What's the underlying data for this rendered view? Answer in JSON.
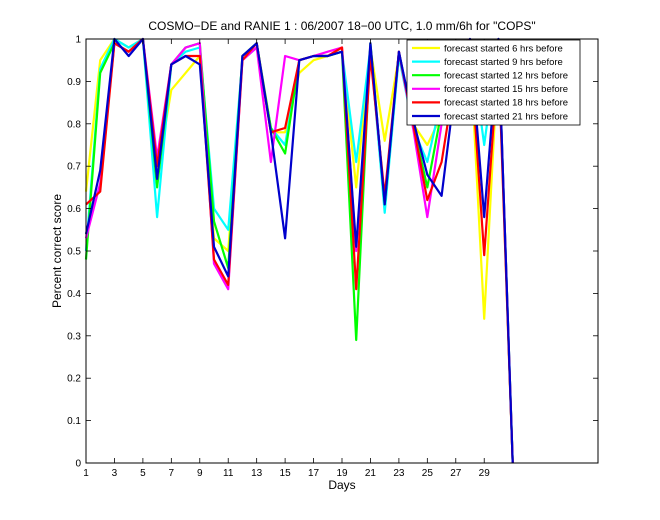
{
  "chart_data": {
    "type": "line",
    "title": "COSMO−DE and RANIE 1 : 06/2007 18−00 UTC, 1.0 mm/6h for \"COPS\"",
    "xlabel": "Days",
    "ylabel": "Percent correct score",
    "xlim": [
      1,
      37
    ],
    "ylim": [
      0,
      1
    ],
    "xticks": [
      1,
      3,
      5,
      7,
      9,
      11,
      13,
      15,
      17,
      19,
      21,
      23,
      25,
      27,
      29
    ],
    "yticks": [
      0,
      0.1,
      0.2,
      0.3,
      0.4,
      0.5,
      0.6,
      0.7,
      0.8,
      0.9,
      1
    ],
    "grid": false,
    "legend_position": "top-right",
    "x": [
      1,
      2,
      3,
      4,
      5,
      6,
      7,
      8,
      9,
      10,
      11,
      12,
      13,
      14,
      15,
      16,
      17,
      18,
      19,
      20,
      21,
      22,
      23,
      24,
      25,
      26,
      27,
      28,
      29,
      30,
      31
    ],
    "series": [
      {
        "name": "forecast started 6 hrs before",
        "color": "#ffff00",
        "values": [
          0.64,
          0.95,
          1.0,
          0.98,
          1.0,
          0.68,
          0.88,
          0.92,
          0.96,
          0.53,
          0.5,
          0.95,
          0.98,
          0.78,
          0.78,
          0.92,
          0.95,
          0.96,
          0.97,
          0.65,
          0.98,
          0.76,
          0.96,
          0.8,
          0.75,
          0.82,
          0.93,
          0.98,
          0.34,
          0.97,
          0.0
        ]
      },
      {
        "name": "forecast started 9 hrs before",
        "color": "#00ffff",
        "values": [
          0.5,
          0.93,
          1.0,
          0.98,
          1.0,
          0.58,
          0.94,
          0.97,
          0.98,
          0.6,
          0.55,
          0.95,
          0.98,
          0.79,
          0.75,
          0.95,
          0.96,
          0.96,
          0.97,
          0.71,
          0.98,
          0.59,
          0.96,
          0.79,
          0.71,
          0.86,
          0.93,
          1.0,
          0.75,
          1.0,
          0.0
        ]
      },
      {
        "name": "forecast started 12 hrs before",
        "color": "#00ff00",
        "values": [
          0.48,
          0.92,
          0.99,
          0.97,
          1.0,
          0.65,
          0.94,
          0.98,
          0.99,
          0.57,
          0.46,
          0.96,
          0.99,
          0.79,
          0.73,
          0.95,
          0.96,
          0.96,
          0.97,
          0.29,
          0.99,
          0.61,
          0.97,
          0.8,
          0.65,
          0.83,
          0.96,
          1.0,
          0.82,
          1.0,
          0.0
        ]
      },
      {
        "name": "forecast started 15 hrs before",
        "color": "#ff00ff",
        "values": [
          0.53,
          0.66,
          0.99,
          0.97,
          1.0,
          0.72,
          0.94,
          0.98,
          0.99,
          0.47,
          0.41,
          0.95,
          0.98,
          0.71,
          0.96,
          0.95,
          0.96,
          0.97,
          0.98,
          0.5,
          0.97,
          0.62,
          0.97,
          0.79,
          0.58,
          0.8,
          0.97,
          1.0,
          0.81,
          1.0,
          0.0
        ]
      },
      {
        "name": "forecast started 18 hrs before",
        "color": "#ff0000",
        "values": [
          0.61,
          0.64,
          0.99,
          0.97,
          1.0,
          0.7,
          0.94,
          0.96,
          0.96,
          0.48,
          0.42,
          0.95,
          0.99,
          0.78,
          0.79,
          0.95,
          0.96,
          0.96,
          0.98,
          0.41,
          0.96,
          0.63,
          0.97,
          0.8,
          0.62,
          0.71,
          0.92,
          0.98,
          0.49,
          0.96,
          0.0
        ]
      },
      {
        "name": "forecast started 21 hrs before",
        "color": "#0000cc",
        "values": [
          0.54,
          0.69,
          1.0,
          0.96,
          1.0,
          0.67,
          0.94,
          0.96,
          0.94,
          0.51,
          0.44,
          0.96,
          0.99,
          0.78,
          0.53,
          0.95,
          0.96,
          0.96,
          0.97,
          0.51,
          0.99,
          0.61,
          0.97,
          0.81,
          0.68,
          0.63,
          0.9,
          1.0,
          0.58,
          1.0,
          0.0
        ]
      }
    ]
  }
}
